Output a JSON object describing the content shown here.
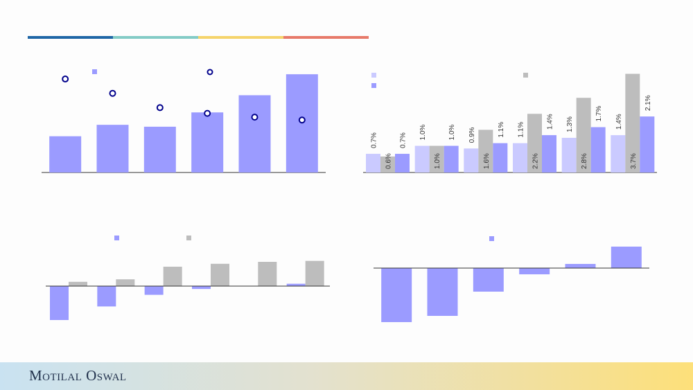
{
  "brand": {
    "name": "Motilal Oswal"
  },
  "colors": {
    "accent_bars": [
      "#1f66a6",
      "#83cbc6",
      "#f5d46b",
      "#e77a6a"
    ],
    "purple": "#9b9bff",
    "light_purple": "#cacaff",
    "grey": "#bdbdbd",
    "marker_stroke": "#00008b"
  },
  "chart_data": [
    {
      "type": "bar",
      "position": "top-left",
      "categories": [
        "",
        "",
        "",
        "",
        "",
        ""
      ],
      "series": [
        {
          "kind": "bar",
          "values": [
            38,
            50,
            48,
            63,
            81,
            103
          ],
          "color": "#9b9bff"
        },
        {
          "kind": "scatter",
          "values": [
            98,
            83,
            68,
            62,
            58,
            55
          ],
          "color": "#00008b"
        }
      ],
      "legend_marker_count": 2,
      "ylim": [
        0,
        130
      ],
      "grid": false
    },
    {
      "type": "bar",
      "position": "top-right",
      "categories": [
        "",
        "",
        "",
        "",
        "",
        ""
      ],
      "series": [
        {
          "values": [
            0.7,
            1.0,
            0.9,
            1.1,
            1.3,
            1.4
          ],
          "labels": [
            "0.7%",
            "1.0%",
            "0.9%",
            "1.1%",
            "1.3%",
            "1.4%"
          ],
          "color": "#cacaff"
        },
        {
          "values": [
            0.6,
            1.0,
            1.6,
            2.2,
            2.8,
            3.7
          ],
          "labels": [
            "0.6%",
            "1.0%",
            "1.6%",
            "2.2%",
            "2.8%",
            "3.7%"
          ],
          "color": "#bdbdbd"
        },
        {
          "values": [
            0.7,
            1.0,
            1.1,
            1.4,
            1.7,
            2.1
          ],
          "labels": [
            "0.7%",
            "1.0%",
            "1.1%",
            "1.4%",
            "1.7%",
            "2.1%"
          ],
          "color": "#9b9bff"
        }
      ],
      "ylim": [
        0,
        4.0
      ],
      "grid": false
    },
    {
      "type": "bar",
      "position": "bottom-left",
      "categories": [
        "",
        "",
        "",
        "",
        "",
        ""
      ],
      "series": [
        {
          "values": [
            -1.75,
            -1.05,
            -0.45,
            -0.15,
            0,
            0.12
          ],
          "color": "#9b9bff"
        },
        {
          "values": [
            0.22,
            0.35,
            1.0,
            1.15,
            1.25,
            1.3
          ],
          "color": "#bdbdbd"
        }
      ],
      "ylim": [
        -2.0,
        1.5
      ],
      "grid": false
    },
    {
      "type": "bar",
      "position": "bottom-right",
      "categories": [
        "",
        "",
        "",
        "",
        "",
        ""
      ],
      "series": [
        {
          "values": [
            -78,
            -69,
            -34,
            -9,
            6,
            31
          ],
          "color": "#9b9bff"
        }
      ],
      "ylim": [
        -90,
        40
      ],
      "grid": false
    }
  ]
}
